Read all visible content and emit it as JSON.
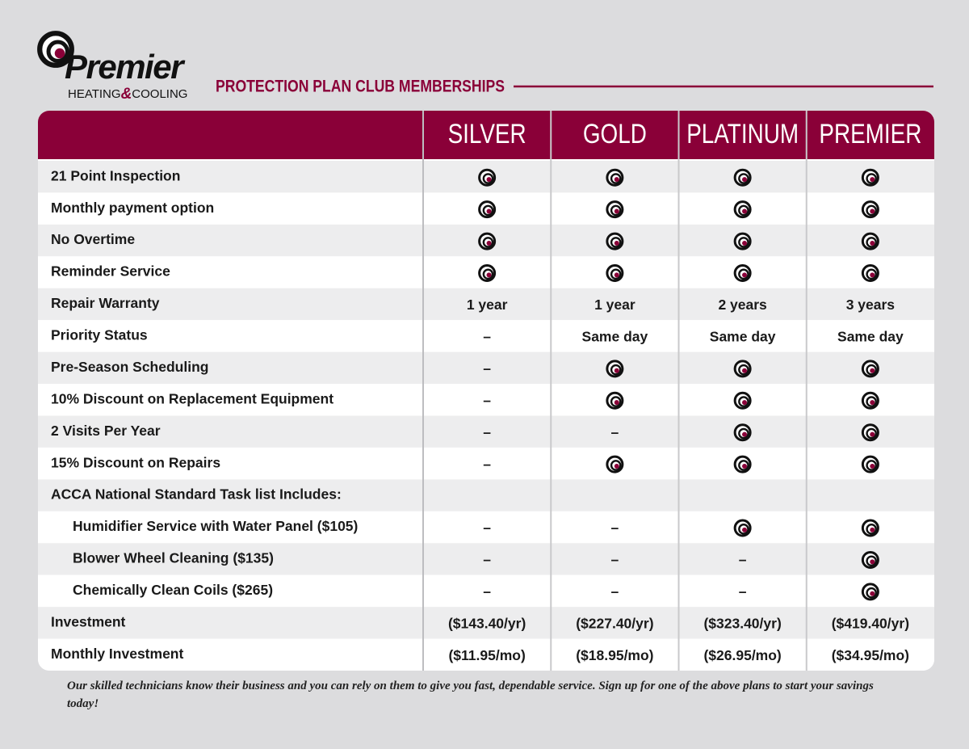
{
  "logo": {
    "name": "Premier",
    "tagline": [
      "HEATING",
      "&",
      "COOLING"
    ]
  },
  "header": {
    "title": "PROTECTION PLAN CLUB MEMBERSHIPS"
  },
  "table": {
    "columns": [
      "SILVER",
      "GOLD",
      "PLATINUM",
      "PREMIER"
    ],
    "rows": [
      {
        "label": "21 Point Inspection",
        "cells": [
          true,
          true,
          true,
          true
        ]
      },
      {
        "label": "Monthly payment option",
        "cells": [
          true,
          true,
          true,
          true
        ]
      },
      {
        "label": "No Overtime",
        "cells": [
          true,
          true,
          true,
          true
        ]
      },
      {
        "label": "Reminder Service",
        "cells": [
          true,
          true,
          true,
          true
        ]
      },
      {
        "label": "Repair Warranty",
        "cells": [
          "1 year",
          "1 year",
          "2 years",
          "3 years"
        ]
      },
      {
        "label": "Priority Status",
        "cells": [
          "–",
          "Same day",
          "Same day",
          "Same day"
        ]
      },
      {
        "label": "Pre-Season Scheduling",
        "cells": [
          "–",
          true,
          true,
          true
        ]
      },
      {
        "label": "10% Discount on Replacement Equipment",
        "cells": [
          "–",
          true,
          true,
          true
        ]
      },
      {
        "label": "2 Visits Per Year",
        "cells": [
          "–",
          "–",
          true,
          true
        ]
      },
      {
        "label": "15% Discount on Repairs",
        "cells": [
          "–",
          true,
          true,
          true
        ]
      },
      {
        "label": "ACCA National Standard Task list Includes:",
        "cells": []
      },
      {
        "label": "Humidifier Service with Water Panel ($105)",
        "indent": true,
        "cells": [
          "–",
          "–",
          true,
          true
        ]
      },
      {
        "label": "Blower Wheel Cleaning ($135)",
        "indent": true,
        "cells": [
          "–",
          "–",
          "–",
          true
        ]
      },
      {
        "label": "Chemically Clean Coils ($265)",
        "indent": true,
        "cells": [
          "–",
          "–",
          "–",
          true
        ]
      },
      {
        "label": "Investment",
        "cells": [
          "($143.40/yr)",
          "($227.40/yr)",
          "($323.40/yr)",
          "($419.40/yr)"
        ]
      },
      {
        "label": "Monthly Investment",
        "cells": [
          "($11.95/mo)",
          "($18.95/mo)",
          "($26.95/mo)",
          "($34.95/mo)"
        ]
      }
    ]
  },
  "footer": {
    "text": "Our skilled technicians know their business and you can rely on them to give you fast, dependable service. Sign up for one of the above plans to start your savings today!"
  }
}
